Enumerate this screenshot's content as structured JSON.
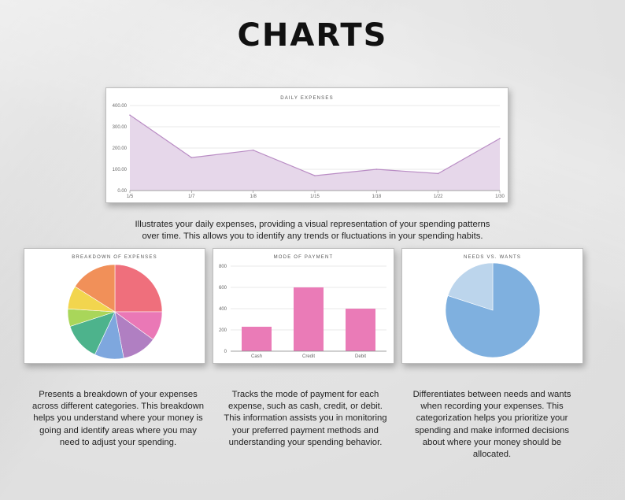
{
  "title": "CHARTS",
  "chart_data": [
    {
      "type": "area",
      "title": "DAILY EXPENSES",
      "x": [
        "1/5",
        "1/7",
        "1/8",
        "1/15",
        "1/18",
        "1/22",
        "1/30"
      ],
      "values": [
        355,
        155,
        190,
        70,
        100,
        80,
        245
      ],
      "ylim": [
        0,
        400
      ],
      "yticks": [
        "400.00",
        "300.00",
        "200.00",
        "100.00",
        "0.00"
      ],
      "grid": true,
      "colors": {
        "fill": "#e6d7ea",
        "line": "#b98cc4"
      }
    },
    {
      "type": "pie",
      "title": "BREAKDOWN OF EXPENSES",
      "values": [
        25,
        10,
        12,
        10,
        13,
        6,
        8,
        16
      ],
      "colors": [
        "#ef6f7c",
        "#ea78b6",
        "#b07fc2",
        "#7ea7de",
        "#4db38c",
        "#a9d65a",
        "#f2d54e",
        "#f19059"
      ]
    },
    {
      "type": "bar",
      "title": "MODE OF PAYMENT",
      "categories": [
        "Cash",
        "Credit",
        "Debit"
      ],
      "values": [
        230,
        600,
        400
      ],
      "ylim": [
        0,
        800
      ],
      "yticks": [
        "800",
        "600",
        "400",
        "200",
        "0"
      ],
      "grid": true,
      "colors": {
        "bar": "#ea7bb7"
      }
    },
    {
      "type": "pie",
      "title": "NEEDS VS. WANTS",
      "values": [
        80,
        20
      ],
      "colors": [
        "#7fb0df",
        "#bcd5ec"
      ]
    }
  ],
  "captions": {
    "daily": "Illustrates your daily expenses, providing a visual representation of your spending patterns over time. This allows you to identify any trends or fluctuations in your spending habits.",
    "breakdown": "Presents a breakdown of your expenses across different categories. This breakdown helps you understand where your money is going and identify areas where you may need to adjust your spending.",
    "payment": "Tracks the mode of payment for each expense, such as cash, credit, or debit. This information assists you in monitoring your preferred payment methods and understanding your spending behavior.",
    "needs": "Differentiates between needs and wants when recording your expenses. This categorization helps you prioritize your spending and make informed decisions about where your money should be allocated."
  }
}
